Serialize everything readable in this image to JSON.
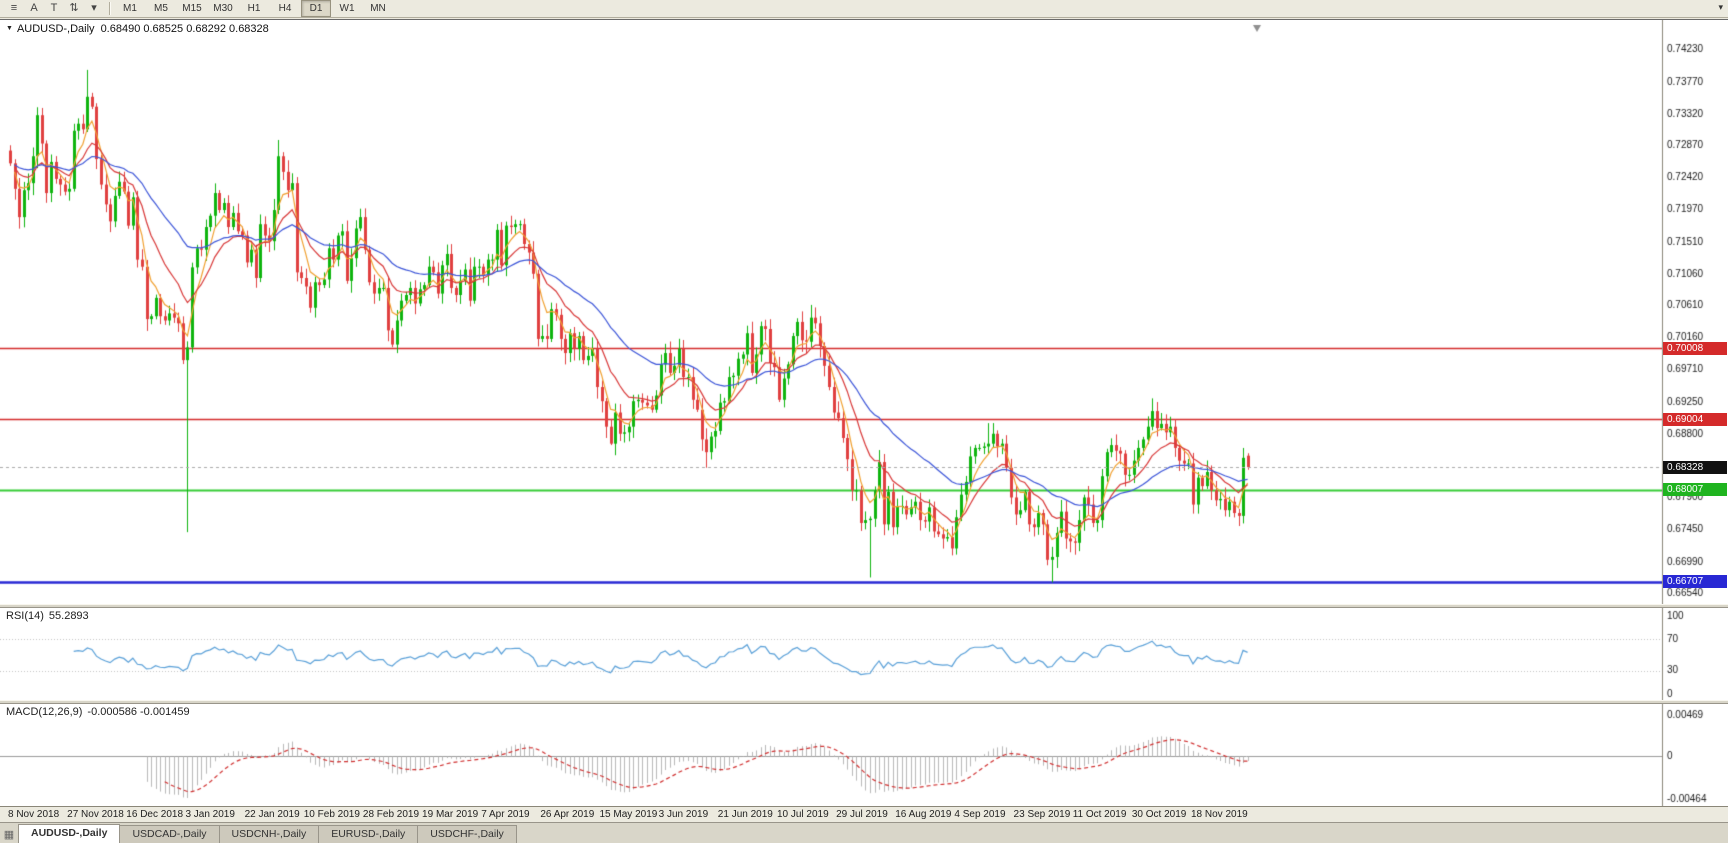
{
  "toolbar": {
    "icons": [
      {
        "name": "menu-icon",
        "glyph": "≡"
      },
      {
        "name": "cursor-a-icon",
        "glyph": "A"
      },
      {
        "name": "text-tool-icon",
        "glyph": "T"
      },
      {
        "name": "scale-toggle-icon",
        "glyph": "⇅"
      },
      {
        "name": "dropdown-caret-icon",
        "glyph": "▾"
      }
    ],
    "timeframes": [
      {
        "label": "M1",
        "active": false
      },
      {
        "label": "M5",
        "active": false
      },
      {
        "label": "M15",
        "active": false
      },
      {
        "label": "M30",
        "active": false
      },
      {
        "label": "H1",
        "active": false
      },
      {
        "label": "H4",
        "active": false
      },
      {
        "label": "D1",
        "active": true
      },
      {
        "label": "W1",
        "active": false
      },
      {
        "label": "MN",
        "active": false
      }
    ],
    "more_glyph": "▾"
  },
  "window_icon_glyph": "▦",
  "tabs": [
    {
      "label": "AUDUSD-,Daily",
      "active": true
    },
    {
      "label": "USDCAD-,Daily",
      "active": false
    },
    {
      "label": "USDCNH-,Daily",
      "active": false
    },
    {
      "label": "EURUSD-,Daily",
      "active": false
    },
    {
      "label": "USDCHF-,Daily",
      "active": false
    }
  ],
  "chart_data": {
    "type": "candlestick",
    "symbol": "AUDUSD-",
    "timeframe": "Daily",
    "title_symbol": "AUDUSD-,Daily",
    "title_ohlc": "0.68490 0.68525 0.68292 0.68328",
    "dropdown_glyph": "▼",
    "first_open": 0.728,
    "bars_per_label": 13,
    "candle_colors": {
      "bull": "#0fb40f",
      "bear": "#e04040"
    },
    "closes": [
      0.7262,
      0.7226,
      0.7186,
      0.7224,
      0.7234,
      0.7272,
      0.733,
      0.729,
      0.722,
      0.7264,
      0.724,
      0.7232,
      0.7222,
      0.7226,
      0.7308,
      0.7318,
      0.731,
      0.7356,
      0.7342,
      0.7268,
      0.7232,
      0.7204,
      0.718,
      0.7216,
      0.7236,
      0.7222,
      0.7174,
      0.7214,
      0.7126,
      0.7116,
      0.7042,
      0.7046,
      0.7072,
      0.7046,
      0.704,
      0.705,
      0.7044,
      0.7036,
      0.6984,
      0.7002,
      0.7115,
      0.7142,
      0.714,
      0.7172,
      0.7188,
      0.722,
      0.7196,
      0.7206,
      0.7172,
      0.7192,
      0.7166,
      0.716,
      0.7122,
      0.714,
      0.71,
      0.7176,
      0.716,
      0.7152,
      0.7196,
      0.7272,
      0.725,
      0.7224,
      0.7234,
      0.7108,
      0.71,
      0.7088,
      0.7058,
      0.7094,
      0.709,
      0.7098,
      0.7142,
      0.7126,
      0.716,
      0.7166,
      0.7096,
      0.7128,
      0.717,
      0.7186,
      0.714,
      0.7094,
      0.7078,
      0.7086,
      0.7086,
      0.7026,
      0.7006,
      0.704,
      0.7068,
      0.7076,
      0.7086,
      0.7064,
      0.7084,
      0.709,
      0.7116,
      0.7108,
      0.7078,
      0.7118,
      0.7134,
      0.7086,
      0.7076,
      0.7096,
      0.7112,
      0.7068,
      0.7116,
      0.7116,
      0.7104,
      0.7126,
      0.7126,
      0.7168,
      0.7118,
      0.7174,
      0.7172,
      0.7176,
      0.7176,
      0.7148,
      0.7136,
      0.7106,
      0.7014,
      0.7018,
      0.7014,
      0.7056,
      0.7048,
      0.7014,
      0.6994,
      0.7022,
      0.7,
      0.7018,
      0.6984,
      0.699,
      0.7,
      0.6946,
      0.6926,
      0.689,
      0.6866,
      0.691,
      0.688,
      0.6882,
      0.689,
      0.6926,
      0.6928,
      0.6924,
      0.692,
      0.6914,
      0.6934,
      0.6978,
      0.6994,
      0.6966,
      0.6976,
      0.7,
      0.696,
      0.696,
      0.6928,
      0.6914,
      0.6872,
      0.6854,
      0.6876,
      0.6884,
      0.6924,
      0.6926,
      0.696,
      0.6962,
      0.6986,
      0.6992,
      0.7022,
      0.6966,
      0.6992,
      0.7032,
      0.7028,
      0.698,
      0.6974,
      0.6928,
      0.6958,
      0.6978,
      0.7018,
      0.7038,
      0.7012,
      0.701,
      0.7044,
      0.7036,
      0.7004,
      0.6976,
      0.6946,
      0.691,
      0.6902,
      0.6874,
      0.6844,
      0.68,
      0.68,
      0.6754,
      0.6758,
      0.676,
      0.68,
      0.684,
      0.6752,
      0.6798,
      0.6748,
      0.6778,
      0.6778,
      0.6766,
      0.6776,
      0.6784,
      0.6758,
      0.6756,
      0.6776,
      0.6742,
      0.6738,
      0.6732,
      0.6734,
      0.6718,
      0.6762,
      0.6794,
      0.6812,
      0.6848,
      0.686,
      0.686,
      0.6862,
      0.6866,
      0.688,
      0.6862,
      0.6866,
      0.6832,
      0.679,
      0.6766,
      0.6772,
      0.6798,
      0.6752,
      0.6748,
      0.6768,
      0.6752,
      0.6702,
      0.6706,
      0.674,
      0.677,
      0.6732,
      0.6728,
      0.6726,
      0.6758,
      0.679,
      0.678,
      0.6754,
      0.6758,
      0.682,
      0.6854,
      0.6864,
      0.6856,
      0.6852,
      0.6822,
      0.6822,
      0.6842,
      0.686,
      0.6872,
      0.689,
      0.6912,
      0.6888,
      0.6894,
      0.6882,
      0.689,
      0.686,
      0.6842,
      0.6838,
      0.6838,
      0.678,
      0.6818,
      0.6806,
      0.6826,
      0.68,
      0.6786,
      0.6788,
      0.6772,
      0.6784,
      0.6768,
      0.6764,
      0.6846,
      0.68328
    ],
    "wick_overrides": {
      "17": {
        "h": 0.7394
      },
      "39": {
        "l": 0.6741
      },
      "59": {
        "h": 0.7295
      },
      "132": {
        "l": 0.6864
      },
      "153": {
        "l": 0.6832
      },
      "176": {
        "h": 0.7062
      },
      "189": {
        "l": 0.6677
      },
      "215": {
        "h": 0.6895
      },
      "229": {
        "l": 0.667
      },
      "251": {
        "h": 0.693
      },
      "272": {
        "o": 0.6849,
        "h": 0.68525,
        "l": 0.68292,
        "c": 0.68328
      }
    },
    "date_labels": [
      "8 Nov 2018",
      "27 Nov 2018",
      "16 Dec 2018",
      "3 Jan 2019",
      "22 Jan 2019",
      "10 Feb 2019",
      "28 Feb 2019",
      "19 Mar 2019",
      "7 Apr 2019",
      "26 Apr 2019",
      "15 May 2019",
      "3 Jun 2019",
      "21 Jun 2019",
      "10 Jul 2019",
      "29 Jul 2019",
      "16 Aug 2019",
      "4 Sep 2019",
      "23 Sep 2019",
      "11 Oct 2019",
      "30 Oct 2019",
      "18 Nov 2019"
    ],
    "price_ticks": [
      "0.74230",
      "0.73770",
      "0.73320",
      "0.72870",
      "0.72420",
      "0.71970",
      "0.71510",
      "0.71060",
      "0.70610",
      "0.70160",
      "0.69710",
      "0.69250",
      "0.68800",
      "0.67900",
      "0.67450",
      "0.66990",
      "0.66540",
      "0.66542"
    ],
    "hlines": [
      {
        "price": 0.70008,
        "color": "#d42a2a",
        "width": 1.4
      },
      {
        "price": 0.69004,
        "color": "#d42a2a",
        "width": 1.4
      },
      {
        "price": 0.68007,
        "color": "#35cc35",
        "width": 2
      },
      {
        "price": 0.66707,
        "color": "#2828d4",
        "width": 2.4
      }
    ],
    "bid_line": {
      "price": 0.68328,
      "color": "#aaaaaa"
    },
    "badges": [
      {
        "text": "0.70008",
        "color": "#d42a2a",
        "price": 0.70008
      },
      {
        "text": "0.69004",
        "color": "#d42a2a",
        "price": 0.69004
      },
      {
        "text": "0.68328",
        "color": "#111111",
        "price": 0.68328
      },
      {
        "text": "0.68007",
        "color": "#1fb41f",
        "price": 0.68007
      },
      {
        "text": "0.66707",
        "color": "#2828d4",
        "price": 0.66707
      }
    ],
    "moving_averages": [
      {
        "period": 5,
        "color": "#f0a030"
      },
      {
        "period": 13,
        "color": "#d83838"
      },
      {
        "period": 34,
        "color": "#3c55d8"
      }
    ],
    "rsi": {
      "label": "RSI(14)",
      "value": "55.2893",
      "period": 14,
      "color": "#5aa0d8",
      "levels": [
        70,
        30
      ],
      "ticks": [
        "100",
        "70",
        "30",
        "0"
      ]
    },
    "macd": {
      "label": "MACD(12,26,9)",
      "values": "-0.000586 -0.001459",
      "fast": 12,
      "slow": 26,
      "signal_period": 9,
      "hist_color": "#b8b8b8",
      "signal_color": "#d03030",
      "ticks": [
        "0.00469",
        "0",
        "-0.00464"
      ]
    }
  }
}
